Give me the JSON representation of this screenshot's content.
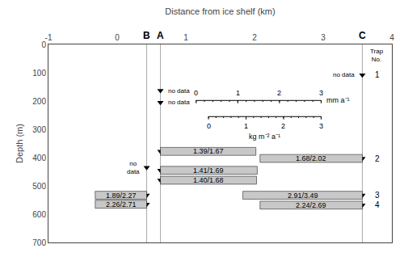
{
  "chart_data": {
    "type": "bar",
    "orientation": "horizontal",
    "x_label": "Distance from ice shelf (km)",
    "y_label": "Depth (m)",
    "xlim": [
      -1,
      4
    ],
    "xticks": [
      -1,
      0,
      1,
      2,
      3,
      4
    ],
    "ylim": [
      700,
      0
    ],
    "yticks": [
      0,
      100,
      200,
      300,
      400,
      500,
      600,
      700
    ],
    "grid": false,
    "color": "#c8c8c8",
    "stations": [
      {
        "name": "B",
        "x": 0.43
      },
      {
        "name": "A",
        "x": 0.63
      },
      {
        "name": "C",
        "x": 3.57
      }
    ],
    "trap_no_header": "Trap\nNo.",
    "traps": [
      {
        "station": "C",
        "depth": 108,
        "no": "1",
        "text": "no data"
      },
      {
        "station": "A",
        "depth": 163,
        "text": "no data"
      },
      {
        "station": "A",
        "depth": 205,
        "text": "no data"
      },
      {
        "station": "B",
        "depth": 435,
        "text": "no\ndata"
      },
      {
        "station": "A",
        "depth": 378,
        "label": "1.39/1.67",
        "left": 0.63,
        "right": 2.02
      },
      {
        "station": "A",
        "depth": 445,
        "label": "1.41/1.69",
        "left": 0.63,
        "right": 2.04
      },
      {
        "station": "A",
        "depth": 480,
        "label": "1.40/1.68",
        "left": 0.63,
        "right": 2.03
      },
      {
        "station": "B",
        "depth": 533,
        "label": "1.89/2.27",
        "left": -0.32,
        "right": 0.43
      },
      {
        "station": "B",
        "depth": 565,
        "label": "2.26/2.71",
        "left": -0.32,
        "right": 0.43
      },
      {
        "station": "C",
        "depth": 403,
        "no": "2",
        "label": "1.68/2.02",
        "left": 2.08,
        "right": 3.57
      },
      {
        "station": "C",
        "depth": 533,
        "no": "3",
        "label": "2.91/3.49",
        "left": 1.83,
        "right": 3.57
      },
      {
        "station": "C",
        "depth": 568,
        "no": "4",
        "label": "2.24/2.69",
        "left": 2.08,
        "right": 3.57
      }
    ],
    "scales": [
      {
        "label": "mm a⁻¹",
        "ticks": [
          0,
          1,
          2,
          3
        ],
        "x0": 1.15,
        "x1": 2.97,
        "depth": 198
      },
      {
        "label": "kg m⁻² a⁻¹",
        "ticks": [
          0,
          1,
          2,
          3
        ],
        "x0": 1.33,
        "x1": 2.97,
        "depth": 255
      }
    ]
  }
}
